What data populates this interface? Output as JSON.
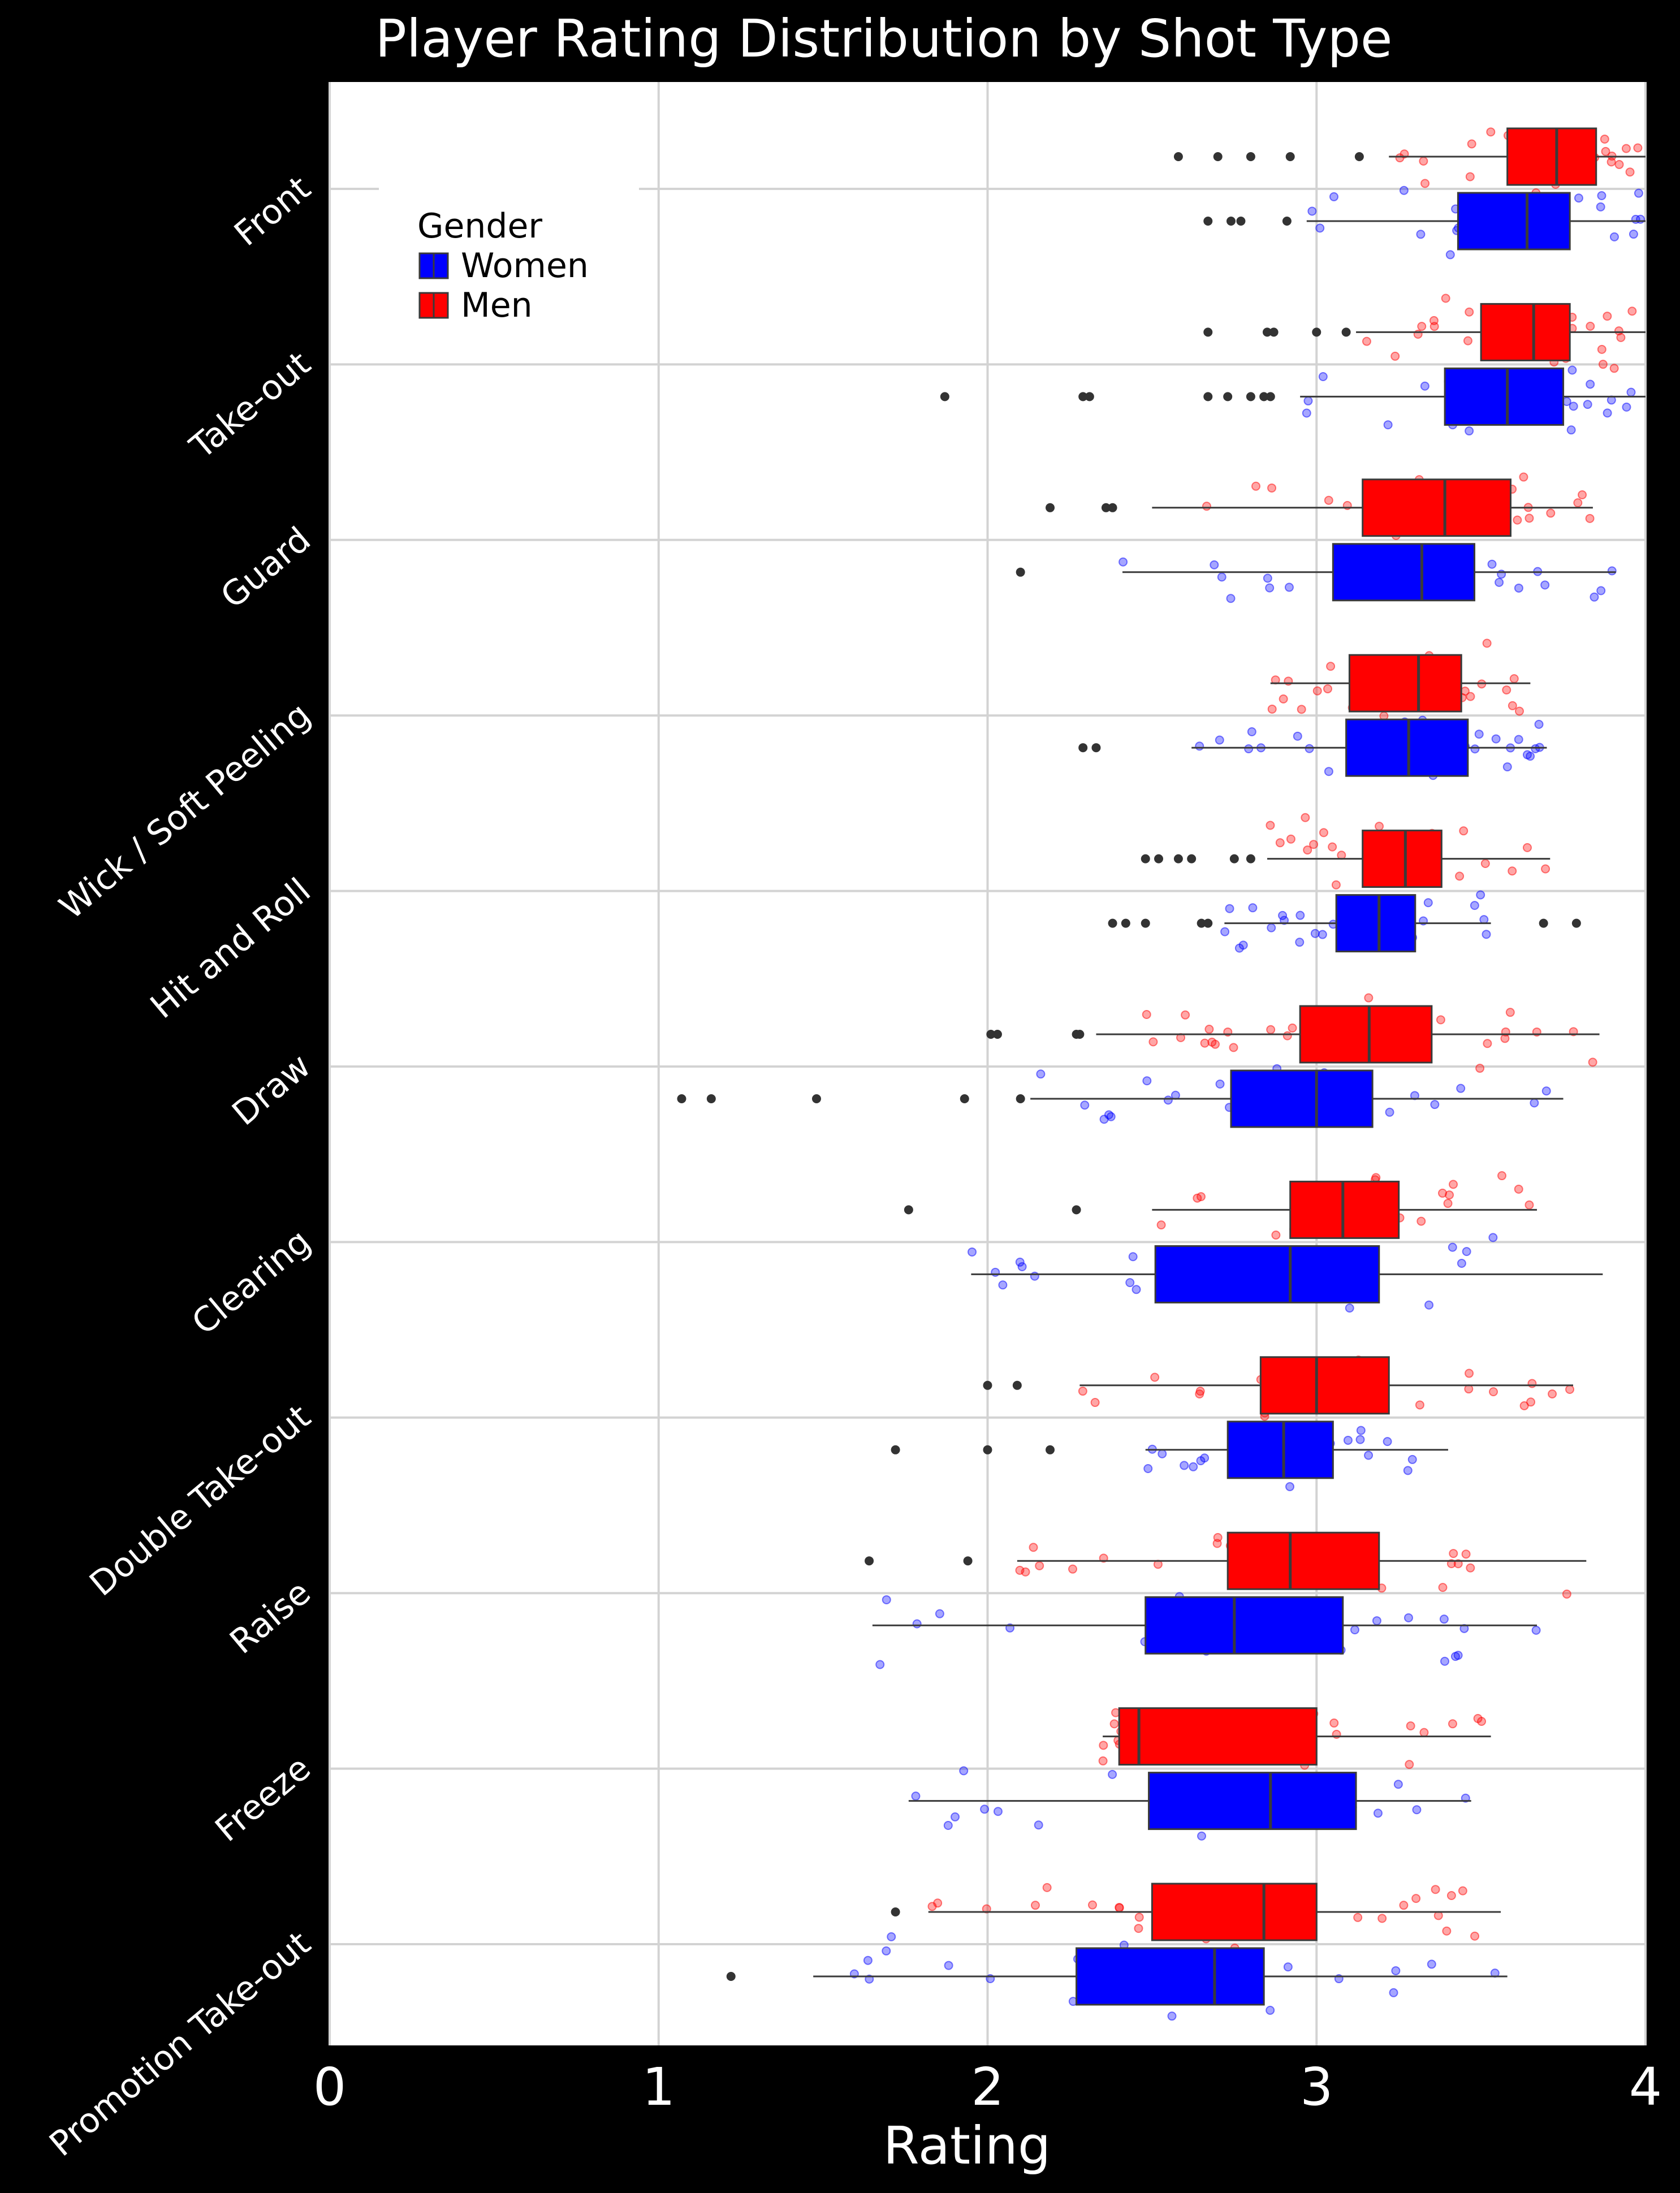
{
  "chart_data": {
    "type": "box",
    "title": "Player Rating Distribution by Shot Type",
    "xlabel": "Rating",
    "ylabel": "",
    "xlim": [
      0,
      4
    ],
    "x_ticks": [
      "0",
      "1",
      "2",
      "3",
      "4"
    ],
    "grid": true,
    "orientation": "horizontal",
    "legend": {
      "title": "Gender",
      "placement": "top-left",
      "entries": [
        {
          "name": "Women",
          "color": "#0000ff"
        },
        {
          "name": "Men",
          "color": "#ff0000"
        }
      ]
    },
    "categories": [
      "Front",
      "Take-out",
      "Guard",
      "Wick / Soft Peeling",
      "Hit and Roll",
      "Draw",
      "Clearing",
      "Double Take-out",
      "Raise",
      "Freeze",
      "Promotion Take-out"
    ],
    "series": [
      {
        "name": "Men",
        "color": "#ff0000",
        "boxes": [
          {
            "category": "Front",
            "whisker_low": 3.22,
            "q1": 3.58,
            "median": 3.73,
            "q3": 3.85,
            "whisker_high": 4.0,
            "outliers": [
              2.58,
              2.7,
              2.8,
              2.92,
              3.13
            ]
          },
          {
            "category": "Take-out",
            "whisker_low": 3.12,
            "q1": 3.5,
            "median": 3.66,
            "q3": 3.77,
            "whisker_high": 4.0,
            "outliers": [
              2.67,
              2.85,
              2.87,
              3.0,
              3.09
            ]
          },
          {
            "category": "Guard",
            "whisker_low": 2.5,
            "q1": 3.14,
            "median": 3.39,
            "q3": 3.59,
            "whisker_high": 3.84,
            "outliers": [
              2.19,
              2.36,
              2.38
            ]
          },
          {
            "category": "Wick / Soft Peeling",
            "whisker_low": 2.86,
            "q1": 3.1,
            "median": 3.31,
            "q3": 3.44,
            "whisker_high": 3.65,
            "outliers": []
          },
          {
            "category": "Hit and Roll",
            "whisker_low": 2.85,
            "q1": 3.14,
            "median": 3.27,
            "q3": 3.38,
            "whisker_high": 3.71,
            "outliers": [
              2.48,
              2.52,
              2.58,
              2.62,
              2.75,
              2.8
            ]
          },
          {
            "category": "Draw",
            "whisker_low": 2.33,
            "q1": 2.95,
            "median": 3.16,
            "q3": 3.35,
            "whisker_high": 3.86,
            "outliers": [
              2.01,
              2.03,
              2.27,
              2.28
            ]
          },
          {
            "category": "Clearing",
            "whisker_low": 2.5,
            "q1": 2.92,
            "median": 3.08,
            "q3": 3.25,
            "whisker_high": 3.67,
            "outliers": [
              1.76,
              2.27
            ]
          },
          {
            "category": "Double Take-out",
            "whisker_low": 2.28,
            "q1": 2.83,
            "median": 3.0,
            "q3": 3.22,
            "whisker_high": 3.78,
            "outliers": [
              2.0,
              2.09
            ]
          },
          {
            "category": "Raise",
            "whisker_low": 2.09,
            "q1": 2.73,
            "median": 2.92,
            "q3": 3.19,
            "whisker_high": 3.82,
            "outliers": [
              1.64,
              1.94
            ]
          },
          {
            "category": "Freeze",
            "whisker_low": 2.35,
            "q1": 2.4,
            "median": 2.46,
            "q3": 3.0,
            "whisker_high": 3.53,
            "outliers": []
          },
          {
            "category": "Promotion Take-out",
            "whisker_low": 1.82,
            "q1": 2.5,
            "median": 2.84,
            "q3": 3.0,
            "whisker_high": 3.56,
            "outliers": [
              1.72
            ]
          }
        ]
      },
      {
        "name": "Women",
        "color": "#0000ff",
        "boxes": [
          {
            "category": "Front",
            "whisker_low": 2.97,
            "q1": 3.43,
            "median": 3.64,
            "q3": 3.77,
            "whisker_high": 4.0,
            "outliers": [
              2.67,
              2.74,
              2.77,
              2.91
            ]
          },
          {
            "category": "Take-out",
            "whisker_low": 2.95,
            "q1": 3.39,
            "median": 3.58,
            "q3": 3.75,
            "whisker_high": 4.0,
            "outliers": [
              1.87,
              2.29,
              2.31,
              2.67,
              2.73,
              2.8,
              2.84,
              2.86
            ]
          },
          {
            "category": "Guard",
            "whisker_low": 2.41,
            "q1": 3.05,
            "median": 3.32,
            "q3": 3.48,
            "whisker_high": 3.91,
            "outliers": [
              2.1
            ]
          },
          {
            "category": "Wick / Soft Peeling",
            "whisker_low": 2.62,
            "q1": 3.09,
            "median": 3.28,
            "q3": 3.46,
            "whisker_high": 3.7,
            "outliers": [
              2.29,
              2.33
            ]
          },
          {
            "category": "Hit and Roll",
            "whisker_low": 2.72,
            "q1": 3.06,
            "median": 3.19,
            "q3": 3.3,
            "whisker_high": 3.53,
            "outliers": [
              2.38,
              2.42,
              2.48,
              2.65,
              2.67,
              3.69,
              3.79
            ]
          },
          {
            "category": "Draw",
            "whisker_low": 2.13,
            "q1": 2.74,
            "median": 3.0,
            "q3": 3.17,
            "whisker_high": 3.75,
            "outliers": [
              1.07,
              1.16,
              1.48,
              1.93,
              2.1
            ]
          },
          {
            "category": "Clearing",
            "whisker_low": 1.95,
            "q1": 2.51,
            "median": 2.92,
            "q3": 3.19,
            "whisker_high": 3.87,
            "outliers": []
          },
          {
            "category": "Double Take-out",
            "whisker_low": 2.48,
            "q1": 2.73,
            "median": 2.9,
            "q3": 3.05,
            "whisker_high": 3.4,
            "outliers": [
              1.72,
              2.0,
              2.19
            ]
          },
          {
            "category": "Raise",
            "whisker_low": 1.65,
            "q1": 2.48,
            "median": 2.75,
            "q3": 3.08,
            "whisker_high": 3.67,
            "outliers": []
          },
          {
            "category": "Freeze",
            "whisker_low": 1.76,
            "q1": 2.49,
            "median": 2.86,
            "q3": 3.12,
            "whisker_high": 3.47,
            "outliers": []
          },
          {
            "category": "Promotion Take-out",
            "whisker_low": 1.47,
            "q1": 2.27,
            "median": 2.69,
            "q3": 2.84,
            "whisker_high": 3.58,
            "outliers": [
              1.22
            ]
          }
        ]
      }
    ]
  }
}
